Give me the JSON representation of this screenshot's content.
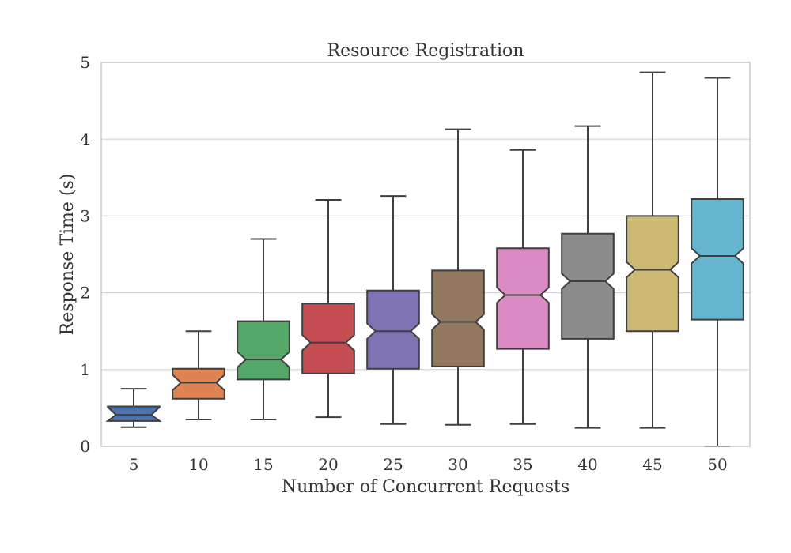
{
  "chart_data": {
    "type": "boxplot",
    "title": "Resource Registration",
    "xlabel": "Number of Concurrent Requests",
    "ylabel": "Response Time (s)",
    "ylim": [
      0,
      5
    ],
    "yticks": [
      "0",
      "1",
      "2",
      "3",
      "4",
      "5"
    ],
    "categories": [
      "5",
      "10",
      "15",
      "20",
      "25",
      "30",
      "35",
      "40",
      "45",
      "50"
    ],
    "grid": true,
    "notched": true,
    "colors": [
      "#4c72b0",
      "#dd8452",
      "#55a868",
      "#c44e52",
      "#8172b3",
      "#937860",
      "#da8bc3",
      "#8c8c8c",
      "#ccb974",
      "#64b5cd"
    ],
    "boxes": [
      {
        "category": "5",
        "whisker_low": 0.25,
        "q1": 0.33,
        "median": 0.41,
        "q3": 0.52,
        "whisker_high": 0.75
      },
      {
        "category": "10",
        "whisker_low": 0.35,
        "q1": 0.62,
        "median": 0.83,
        "q3": 1.01,
        "whisker_high": 1.5
      },
      {
        "category": "15",
        "whisker_low": 0.35,
        "q1": 0.87,
        "median": 1.13,
        "q3": 1.63,
        "whisker_high": 2.7
      },
      {
        "category": "20",
        "whisker_low": 0.38,
        "q1": 0.95,
        "median": 1.35,
        "q3": 1.86,
        "whisker_high": 3.21
      },
      {
        "category": "25",
        "whisker_low": 0.29,
        "q1": 1.01,
        "median": 1.5,
        "q3": 2.03,
        "whisker_high": 3.26
      },
      {
        "category": "30",
        "whisker_low": 0.28,
        "q1": 1.04,
        "median": 1.62,
        "q3": 2.29,
        "whisker_high": 4.13
      },
      {
        "category": "35",
        "whisker_low": 0.29,
        "q1": 1.27,
        "median": 1.97,
        "q3": 2.58,
        "whisker_high": 3.86
      },
      {
        "category": "40",
        "whisker_low": 0.24,
        "q1": 1.4,
        "median": 2.15,
        "q3": 2.77,
        "whisker_high": 4.17
      },
      {
        "category": "45",
        "whisker_low": 0.24,
        "q1": 1.5,
        "median": 2.3,
        "q3": 3.0,
        "whisker_high": 4.87
      },
      {
        "category": "50",
        "whisker_low": 0.0,
        "q1": 1.65,
        "median": 2.48,
        "q3": 3.22,
        "whisker_high": 4.8
      }
    ]
  }
}
